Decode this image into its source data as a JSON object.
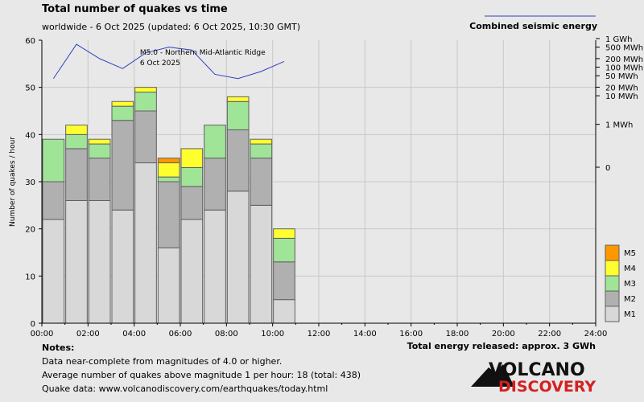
{
  "header": {
    "title": "Total number of quakes vs time",
    "subtitle": "worldwide -  6 Oct 2025 (updated: 6 Oct 2025, 10:30 GMT)",
    "energy_legend": "Combined seismic energy"
  },
  "notes": {
    "title": "Notes:",
    "line1": "Data near-complete from magnitudes of 4.0 or higher.",
    "line2": "Average number of quakes above magnitude 1 per hour: 18 (total: 438)",
    "line3": "Quake data: www.volcanodiscovery.com/earthquakes/today.html"
  },
  "total_energy": "Total energy released: approx. 3 GWh",
  "logo": {
    "line1": "VOLCANO",
    "line2": "DISCOVERY"
  },
  "colors": {
    "background": "#e8e8e8",
    "M1": "#d8d8d8",
    "M2": "#b0b0b0",
    "M3": "#a0e498",
    "M4": "#ffff30",
    "M5": "#ff9800",
    "energy_line": "#3040c0",
    "grid": "#c8c8c8",
    "logo_red": "#d42020"
  },
  "chart_data": {
    "type": "bar",
    "stacked": true,
    "xlabel": "",
    "ylabel": "Number of quakes / hour",
    "ylim": [
      0,
      60
    ],
    "yticks": [
      0,
      10,
      20,
      30,
      40,
      50,
      60
    ],
    "xlim": [
      0,
      24
    ],
    "xticks": [
      "00:00",
      "02:00",
      "04:00",
      "06:00",
      "08:00",
      "10:00",
      "12:00",
      "14:00",
      "16:00",
      "18:00",
      "20:00",
      "22:00",
      "24:00"
    ],
    "hours": [
      0,
      1,
      2,
      3,
      4,
      5,
      6,
      7,
      8,
      9,
      10
    ],
    "series": [
      {
        "name": "M1",
        "values": [
          22,
          26,
          26,
          24,
          34,
          16,
          22,
          24,
          28,
          25,
          5
        ]
      },
      {
        "name": "M2",
        "values": [
          8,
          11,
          9,
          19,
          11,
          14,
          7,
          11,
          13,
          10,
          8
        ]
      },
      {
        "name": "M3",
        "values": [
          9,
          3,
          3,
          3,
          4,
          1,
          4,
          7,
          6,
          3,
          5
        ]
      },
      {
        "name": "M4",
        "values": [
          0,
          2,
          1,
          1,
          1,
          3,
          4,
          0,
          1,
          1,
          2
        ]
      },
      {
        "name": "M5",
        "values": [
          0,
          0,
          0,
          0,
          0,
          1,
          0,
          0,
          0,
          0,
          0
        ]
      }
    ],
    "legend": [
      "M5",
      "M4",
      "M3",
      "M2",
      "M1"
    ],
    "legend_position": "bottom-right",
    "energy": {
      "name": "Combined seismic energy",
      "axis_ticks": [
        "1 GWh",
        "500 MWh",
        "200 MWh",
        "100 MWh",
        "50 MWh",
        "20 MWh",
        "10 MWh",
        "1 MWh",
        "0"
      ],
      "hours": [
        0.5,
        1.5,
        2.5,
        3.5,
        4.5,
        5.5,
        6.5,
        7.5,
        8.5,
        9.5,
        10.5
      ],
      "values_log10_mwh": [
        1.6,
        2.8,
        2.3,
        1.95,
        2.5,
        2.7,
        2.6,
        1.75,
        1.6,
        1.85,
        2.2
      ]
    },
    "annotation": {
      "line1": "M5.0 - Northern Mid-Atlantic Ridge",
      "line2": "6 Oct 2025",
      "hour": 5.3
    },
    "grid": true
  }
}
